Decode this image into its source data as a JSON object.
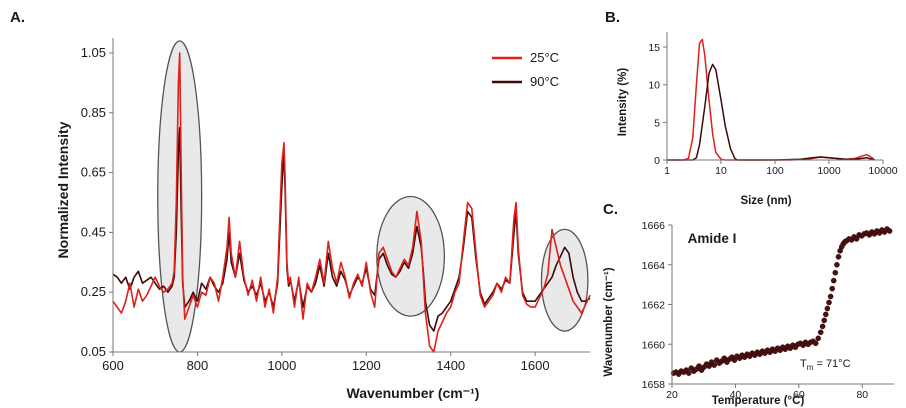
{
  "chart_data": [
    {
      "panel": "A.",
      "type": "line",
      "xlabel": "Wavenumber (cm⁻¹)",
      "ylabel": "Normalized Intensity",
      "xlim": [
        600,
        1730
      ],
      "ylim": [
        0.05,
        1.1
      ],
      "xticks": [
        600,
        800,
        1000,
        1200,
        1400,
        1600
      ],
      "yticks": [
        "0.05",
        "0.25",
        "0.45",
        "0.65",
        "0.85",
        "1.05"
      ],
      "grid": false,
      "legend": "top-right",
      "colors": {
        "25°C": "#e0201b",
        "90°C": "#3b0a0a",
        "highlight": "#e2e2e2"
      },
      "highlight_regions": [
        {
          "cx": 758,
          "cy": 0.57,
          "rx": 52,
          "ry": 0.52
        },
        {
          "cx": 1305,
          "cy": 0.37,
          "rx": 80,
          "ry": 0.2
        },
        {
          "cx": 1670,
          "cy": 0.29,
          "rx": 55,
          "ry": 0.17
        }
      ],
      "series": [
        {
          "name": "25°C",
          "x": [
            600,
            610,
            620,
            630,
            640,
            650,
            660,
            670,
            680,
            690,
            700,
            710,
            720,
            730,
            740,
            745,
            750,
            755,
            758,
            761,
            765,
            770,
            780,
            790,
            800,
            810,
            820,
            830,
            840,
            850,
            860,
            870,
            875,
            880,
            890,
            900,
            910,
            920,
            930,
            940,
            950,
            960,
            970,
            980,
            990,
            1000,
            1005,
            1008,
            1012,
            1016,
            1020,
            1030,
            1040,
            1050,
            1060,
            1070,
            1080,
            1090,
            1100,
            1110,
            1120,
            1130,
            1140,
            1150,
            1160,
            1170,
            1180,
            1190,
            1200,
            1210,
            1220,
            1230,
            1240,
            1250,
            1260,
            1270,
            1280,
            1290,
            1300,
            1310,
            1320,
            1330,
            1335,
            1340,
            1350,
            1360,
            1370,
            1380,
            1390,
            1400,
            1410,
            1420,
            1430,
            1440,
            1450,
            1460,
            1470,
            1480,
            1490,
            1500,
            1510,
            1520,
            1530,
            1540,
            1550,
            1555,
            1560,
            1570,
            1580,
            1590,
            1600,
            1610,
            1620,
            1630,
            1640,
            1650,
            1660,
            1670,
            1680,
            1690,
            1700,
            1710,
            1720,
            1730
          ],
          "y": [
            0.22,
            0.2,
            0.18,
            0.22,
            0.28,
            0.2,
            0.26,
            0.22,
            0.24,
            0.27,
            0.3,
            0.27,
            0.25,
            0.26,
            0.28,
            0.32,
            0.55,
            0.95,
            1.05,
            0.7,
            0.3,
            0.16,
            0.2,
            0.24,
            0.2,
            0.25,
            0.24,
            0.3,
            0.28,
            0.22,
            0.3,
            0.4,
            0.5,
            0.38,
            0.3,
            0.42,
            0.3,
            0.24,
            0.29,
            0.22,
            0.3,
            0.2,
            0.26,
            0.18,
            0.3,
            0.68,
            0.75,
            0.62,
            0.35,
            0.28,
            0.3,
            0.2,
            0.3,
            0.16,
            0.28,
            0.25,
            0.3,
            0.36,
            0.28,
            0.42,
            0.33,
            0.28,
            0.35,
            0.3,
            0.23,
            0.28,
            0.31,
            0.27,
            0.35,
            0.25,
            0.2,
            0.38,
            0.4,
            0.36,
            0.32,
            0.3,
            0.33,
            0.36,
            0.34,
            0.4,
            0.52,
            0.42,
            0.3,
            0.18,
            0.07,
            0.05,
            0.12,
            0.15,
            0.18,
            0.2,
            0.25,
            0.28,
            0.42,
            0.55,
            0.53,
            0.38,
            0.24,
            0.2,
            0.22,
            0.24,
            0.28,
            0.25,
            0.3,
            0.28,
            0.5,
            0.55,
            0.4,
            0.24,
            0.21,
            0.2,
            0.2,
            0.23,
            0.26,
            0.31,
            0.46,
            0.4,
            0.34,
            0.3,
            0.26,
            0.22,
            0.2,
            0.18,
            0.21,
            0.24
          ]
        },
        {
          "name": "90°C",
          "x": [
            600,
            610,
            620,
            630,
            640,
            650,
            660,
            670,
            680,
            690,
            700,
            710,
            720,
            730,
            740,
            745,
            750,
            755,
            758,
            761,
            765,
            770,
            780,
            790,
            800,
            810,
            820,
            830,
            840,
            850,
            860,
            870,
            875,
            880,
            890,
            900,
            910,
            920,
            930,
            940,
            950,
            960,
            970,
            980,
            990,
            1000,
            1005,
            1008,
            1012,
            1016,
            1020,
            1030,
            1040,
            1050,
            1060,
            1070,
            1080,
            1090,
            1100,
            1110,
            1120,
            1130,
            1140,
            1150,
            1160,
            1170,
            1180,
            1190,
            1200,
            1210,
            1220,
            1230,
            1240,
            1250,
            1260,
            1270,
            1280,
            1290,
            1300,
            1310,
            1320,
            1330,
            1335,
            1340,
            1350,
            1360,
            1370,
            1380,
            1390,
            1400,
            1410,
            1420,
            1430,
            1440,
            1450,
            1460,
            1470,
            1480,
            1490,
            1500,
            1510,
            1520,
            1530,
            1540,
            1550,
            1555,
            1560,
            1570,
            1580,
            1590,
            1600,
            1610,
            1620,
            1630,
            1640,
            1650,
            1660,
            1670,
            1680,
            1690,
            1700,
            1710,
            1720,
            1730
          ],
          "y": [
            0.31,
            0.3,
            0.28,
            0.3,
            0.26,
            0.3,
            0.32,
            0.28,
            0.29,
            0.3,
            0.28,
            0.26,
            0.27,
            0.25,
            0.27,
            0.3,
            0.45,
            0.72,
            0.8,
            0.55,
            0.28,
            0.2,
            0.22,
            0.25,
            0.22,
            0.28,
            0.26,
            0.3,
            0.27,
            0.25,
            0.28,
            0.36,
            0.45,
            0.35,
            0.3,
            0.38,
            0.29,
            0.25,
            0.27,
            0.24,
            0.28,
            0.22,
            0.25,
            0.2,
            0.28,
            0.6,
            0.72,
            0.58,
            0.33,
            0.27,
            0.29,
            0.22,
            0.29,
            0.2,
            0.27,
            0.25,
            0.28,
            0.34,
            0.27,
            0.38,
            0.3,
            0.27,
            0.32,
            0.29,
            0.24,
            0.27,
            0.3,
            0.28,
            0.33,
            0.26,
            0.24,
            0.36,
            0.38,
            0.34,
            0.31,
            0.3,
            0.32,
            0.35,
            0.33,
            0.38,
            0.47,
            0.4,
            0.32,
            0.22,
            0.14,
            0.12,
            0.17,
            0.18,
            0.2,
            0.22,
            0.26,
            0.3,
            0.4,
            0.52,
            0.5,
            0.36,
            0.25,
            0.21,
            0.23,
            0.25,
            0.28,
            0.26,
            0.29,
            0.28,
            0.45,
            0.52,
            0.38,
            0.25,
            0.22,
            0.22,
            0.22,
            0.24,
            0.26,
            0.28,
            0.3,
            0.34,
            0.37,
            0.4,
            0.38,
            0.3,
            0.25,
            0.22,
            0.22,
            0.23
          ]
        }
      ]
    },
    {
      "panel": "B.",
      "type": "line",
      "xscale": "log",
      "xlabel": "Size (nm)",
      "ylabel": "Intensity (%)",
      "xlim": [
        1,
        10000
      ],
      "ylim": [
        0,
        17
      ],
      "xticks": [
        "1",
        "10",
        "100",
        "1000",
        "10000"
      ],
      "yticks": [
        "0",
        "5",
        "10",
        "15"
      ],
      "grid": false,
      "series": [
        {
          "name": "25°C",
          "x": [
            1,
            2,
            2.5,
            3,
            3.5,
            4,
            4.5,
            5,
            6,
            7,
            8,
            10,
            12,
            15,
            20,
            50,
            200,
            400,
            700,
            1000,
            2000,
            3000,
            4000,
            5000,
            6000,
            7000
          ],
          "y": [
            0,
            0,
            0.2,
            3,
            10,
            15.5,
            16,
            14,
            8,
            3.5,
            1,
            0.1,
            0,
            0,
            0,
            0,
            0,
            0.1,
            0.4,
            0.3,
            0.1,
            0.2,
            0.5,
            0.7,
            0.4,
            0
          ]
        },
        {
          "name": "90°C",
          "x": [
            1,
            3,
            3.5,
            4,
            5,
            6,
            7,
            8,
            10,
            12,
            15,
            18,
            20,
            30,
            100,
            300,
            500,
            700,
            1000,
            2000,
            3000,
            5000,
            7000
          ],
          "y": [
            0,
            0,
            0.3,
            2,
            7,
            11.5,
            12.7,
            12,
            8,
            4.5,
            1.5,
            0.2,
            0,
            0,
            0,
            0.1,
            0.3,
            0.4,
            0.3,
            0.1,
            0.1,
            0.3,
            0
          ]
        }
      ]
    },
    {
      "panel": "C.",
      "type": "scatter",
      "title": "Amide I",
      "xlabel": "Temperature (°C)",
      "ylabel": "Wavenumber (cm⁻¹)",
      "xlim": [
        20,
        90
      ],
      "ylim": [
        1658,
        1666
      ],
      "xticks": [
        "20",
        "40",
        "60",
        "80"
      ],
      "yticks": [
        "1658",
        "1660",
        "1662",
        "1664",
        "1666"
      ],
      "grid": false,
      "annotation": {
        "text": "T",
        "sub": "m",
        "rest": " = 71°C"
      },
      "marker_color": "#4a0f0f",
      "series": [
        {
          "x": [
            20.5,
            21.3,
            22.1,
            22.9,
            23.7,
            24.5,
            25.3,
            26.1,
            26.9,
            27.7,
            28.5,
            29.3,
            30.1,
            30.9,
            31.7,
            32.5,
            33.3,
            34.1,
            34.9,
            35.7,
            36.5,
            37.3,
            38.1,
            38.9,
            39.7,
            40.5,
            41.3,
            42.1,
            42.9,
            43.7,
            44.5,
            45.3,
            46.1,
            46.9,
            47.7,
            48.5,
            49.3,
            50.1,
            50.9,
            51.7,
            52.5,
            53.3,
            54.1,
            54.9,
            55.7,
            56.5,
            57.3,
            58.1,
            58.9,
            59.7,
            60.5,
            61.3,
            62.1,
            62.9,
            63.7,
            64.5,
            65.3,
            66.1,
            66.9,
            67.5,
            68.0,
            68.5,
            69.0,
            69.5,
            70.0,
            70.5,
            71.0,
            71.5,
            72.0,
            72.5,
            73.0,
            73.5,
            74.0,
            74.5,
            75.0,
            75.8,
            76.6,
            77.4,
            78.2,
            79.0,
            79.8,
            80.6,
            81.4,
            82.2,
            83.0,
            83.8,
            84.6,
            85.4,
            86.2,
            87.0,
            87.8,
            88.6
          ],
          "y": [
            1658.55,
            1658.6,
            1658.5,
            1658.65,
            1658.6,
            1658.7,
            1658.55,
            1658.8,
            1658.65,
            1658.75,
            1658.9,
            1658.7,
            1658.85,
            1659.0,
            1658.9,
            1659.1,
            1658.95,
            1659.2,
            1659.05,
            1659.15,
            1659.3,
            1659.1,
            1659.25,
            1659.35,
            1659.2,
            1659.4,
            1659.3,
            1659.45,
            1659.35,
            1659.5,
            1659.4,
            1659.55,
            1659.45,
            1659.6,
            1659.5,
            1659.65,
            1659.55,
            1659.7,
            1659.6,
            1659.75,
            1659.65,
            1659.8,
            1659.7,
            1659.85,
            1659.75,
            1659.9,
            1659.8,
            1659.95,
            1659.85,
            1660.0,
            1660.05,
            1659.95,
            1660.1,
            1660.0,
            1660.1,
            1660.15,
            1660.05,
            1660.3,
            1660.6,
            1660.9,
            1661.2,
            1661.5,
            1661.8,
            1662.1,
            1662.4,
            1662.8,
            1663.2,
            1663.6,
            1664.0,
            1664.4,
            1664.7,
            1664.9,
            1665.05,
            1665.15,
            1665.2,
            1665.3,
            1665.25,
            1665.4,
            1665.3,
            1665.5,
            1665.45,
            1665.55,
            1665.6,
            1665.5,
            1665.65,
            1665.55,
            1665.7,
            1665.6,
            1665.75,
            1665.65,
            1665.8,
            1665.7
          ]
        }
      ]
    }
  ]
}
